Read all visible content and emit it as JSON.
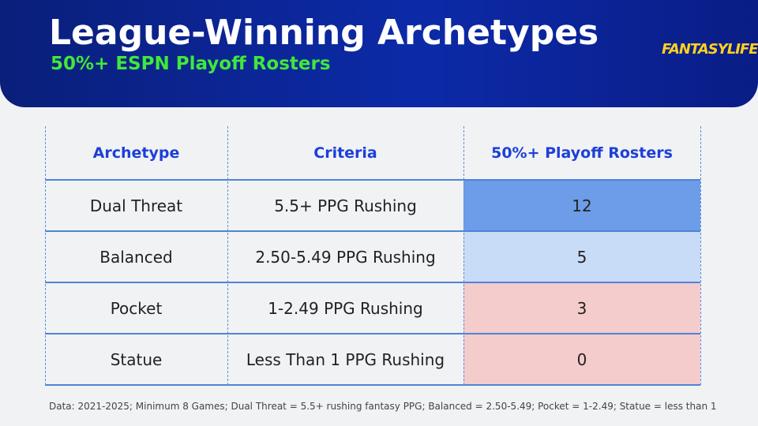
{
  "header": {
    "title": "League-Winning Archetypes",
    "subtitle": "50%+ ESPN Playoff Rosters",
    "logo": "FANTASYLIFE"
  },
  "table": {
    "columns": [
      "Archetype",
      "Criteria",
      "50%+ Playoff Rosters"
    ],
    "rows": [
      [
        "Dual Threat",
        "5.5+ PPG Rushing",
        12
      ],
      [
        "Balanced",
        "2.50-5.49 PPG Rushing",
        5
      ],
      [
        "Pocket",
        "1-2.49 PPG Rushing",
        3
      ],
      [
        "Statue",
        "Less Than 1 PPG Rushing",
        0
      ]
    ],
    "highlight_colors": [
      "#6d9de8",
      "#c9dcf7",
      "#f4cccc",
      "#f4cccc"
    ]
  },
  "footnote": "Data: 2021-2025; Minimum 8 Games; Dual Threat = 5.5+ rushing fantasy PPG; Balanced = 2.50-5.49; Pocket = 1-2.49; Statue = less than 1"
}
